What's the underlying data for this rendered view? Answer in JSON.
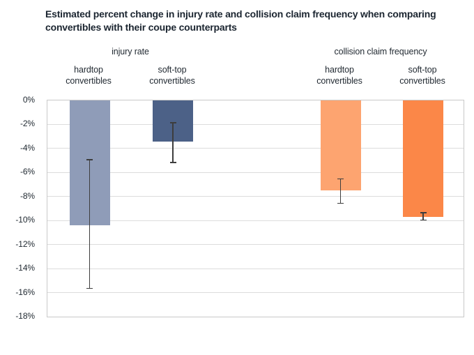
{
  "chart_data": {
    "type": "bar",
    "title": "Estimated percent change in injury rate and collision claim frequency when comparing convertibles with their coupe counterparts",
    "ylabel": "",
    "xlabel": "",
    "ylim": [
      0,
      -18
    ],
    "grid": true,
    "legend_position": "none",
    "y_ticks": [
      "0%",
      "-2%",
      "-4%",
      "-6%",
      "-8%",
      "-10%",
      "-12%",
      "-14%",
      "-16%",
      "-18%"
    ],
    "unit": "percent",
    "groups": [
      {
        "label": "injury rate",
        "bars": [
          {
            "label": "hardtop convertibles",
            "value": -10.4,
            "ci": [
              -4.9,
              -15.7
            ],
            "color": "#8f9cb8"
          },
          {
            "label": "soft-top convertibles",
            "value": -3.4,
            "ci": [
              -1.8,
              -5.2
            ],
            "color": "#4c6187"
          }
        ]
      },
      {
        "label": "collision claim frequency",
        "bars": [
          {
            "label": "hardtop convertibles",
            "value": -7.5,
            "ci": [
              -6.5,
              -8.6
            ],
            "color": "#fda470"
          },
          {
            "label": "soft-top convertibles",
            "value": -9.7,
            "ci": [
              -9.3,
              -10.0
            ],
            "color": "#fb8748"
          }
        ]
      }
    ],
    "colors": {
      "grid": "#dcdcdc",
      "plot_border": "#c9c9c9",
      "error_bar": "#3d3d3d",
      "text": "#232b33"
    }
  }
}
